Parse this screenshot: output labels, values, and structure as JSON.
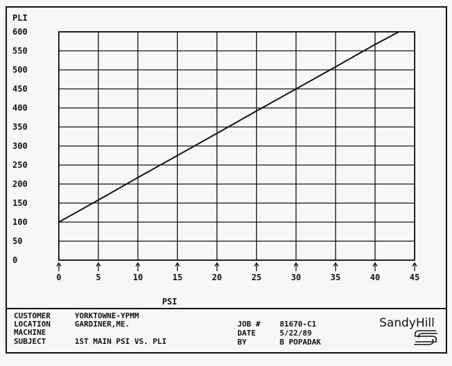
{
  "chart_data": {
    "type": "line",
    "ylabel": "PLI",
    "xlabel": "PSI",
    "x_ticks": [
      "0",
      "5",
      "10",
      "15",
      "20",
      "25",
      "30",
      "35",
      "40",
      "45"
    ],
    "y_ticks": [
      "0",
      "50",
      "100",
      "150",
      "200",
      "250",
      "300",
      "350",
      "400",
      "450",
      "500",
      "550",
      "600"
    ],
    "xlim": [
      0,
      45
    ],
    "ylim": [
      0,
      600
    ],
    "grid": true,
    "series": [
      {
        "x": [
          0,
          5,
          10,
          15,
          20,
          25,
          30,
          35,
          40,
          43
        ],
        "y": [
          100,
          158,
          217,
          275,
          333,
          392,
          450,
          508,
          567,
          600
        ]
      }
    ]
  },
  "info": {
    "customer_label": "CUSTOMER",
    "customer": "YORKTOWNE-YPMM",
    "location_label": "LOCATION",
    "location": "GARDINER,ME.",
    "machine_label": "MACHINE",
    "machine": "",
    "subject_label": "SUBJECT",
    "subject": "1ST MAIN PSI VS. PLI",
    "job_label": "JOB #",
    "job": "81670-C1",
    "date_label": "DATE",
    "date": "5/22/89",
    "by_label": "BY",
    "by": "B POPADAK"
  },
  "brand": {
    "name": "SandyHill"
  }
}
